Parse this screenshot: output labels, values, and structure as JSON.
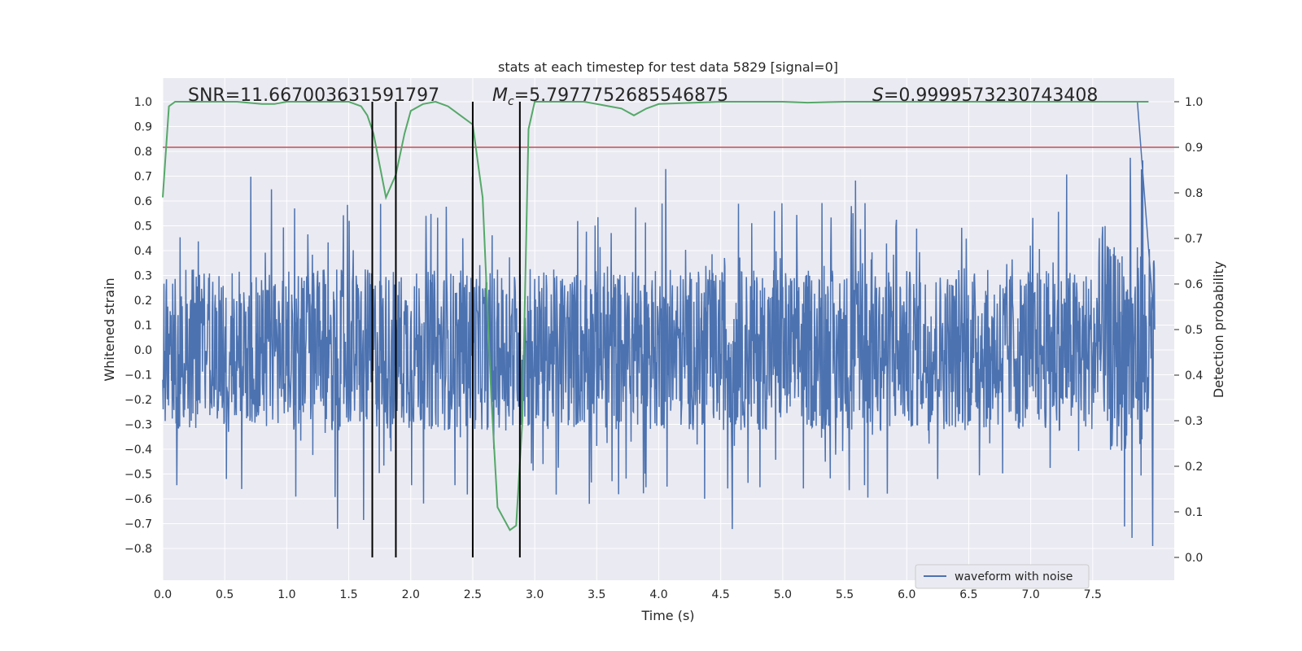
{
  "chart_data": {
    "type": "line",
    "title": "stats at each timestep for test data 5829 [signal=0]",
    "xlabel": "Time (s)",
    "ylabel": "Whitened strain",
    "y2label": "Detection probability",
    "xlim": [
      0.0,
      8.0
    ],
    "ylim": [
      -0.85,
      1.08
    ],
    "y2lim": [
      -0.05,
      1.04
    ],
    "xticks": [
      "0.0",
      "0.5",
      "1.0",
      "1.5",
      "2.0",
      "2.5",
      "3.0",
      "3.5",
      "4.0",
      "4.5",
      "5.0",
      "5.5",
      "6.0",
      "6.5",
      "7.0",
      "7.5"
    ],
    "yticks": [
      "1.0",
      "0.9",
      "0.8",
      "0.7",
      "0.6",
      "0.5",
      "0.4",
      "0.3",
      "0.2",
      "0.1",
      "0.0",
      "−0.1",
      "−0.2",
      "−0.3",
      "−0.4",
      "−0.5",
      "−0.6",
      "−0.7",
      "−0.8"
    ],
    "y2ticks": [
      "1.0",
      "0.9",
      "0.8",
      "0.7",
      "0.6",
      "0.5",
      "0.4",
      "0.3",
      "0.2",
      "0.1",
      "0.0"
    ],
    "annotations": {
      "snr": "SNR=11.667003631591797",
      "mc_symbol": "M",
      "mc_sub": "c",
      "mc_value": "=5.7977752685546875",
      "s_symbol": "S",
      "s_value": "=0.9999573230743408"
    },
    "threshold": 0.9,
    "vlines": [
      1.69,
      1.88,
      2.5,
      2.88
    ],
    "series": [
      {
        "name": "waveform with noise",
        "color": "#4c72b0",
        "envelope_note": "dense noise band approx -0.3 to 0.35 with spikes up to 1.0 near 7.85 s and down to -0.79"
      },
      {
        "name": "detection probability",
        "color": "#55a868",
        "x": [
          0.0,
          0.05,
          0.1,
          0.2,
          0.4,
          0.6,
          0.8,
          0.9,
          1.0,
          1.2,
          1.4,
          1.5,
          1.6,
          1.65,
          1.7,
          1.8,
          1.88,
          1.95,
          2.0,
          2.1,
          2.2,
          2.3,
          2.4,
          2.5,
          2.58,
          2.65,
          2.7,
          2.8,
          2.85,
          2.9,
          2.95,
          3.0,
          3.2,
          3.4,
          3.5,
          3.6,
          3.7,
          3.8,
          3.9,
          4.0,
          4.5,
          5.0,
          5.2,
          5.5,
          6.0,
          6.5,
          7.0,
          7.5,
          7.95
        ],
        "values": [
          0.79,
          0.99,
          1.0,
          1.0,
          1.0,
          1.0,
          0.995,
          0.995,
          1.0,
          1.0,
          1.0,
          1.0,
          0.99,
          0.97,
          0.93,
          0.79,
          0.84,
          0.93,
          0.98,
          0.995,
          1.0,
          0.99,
          0.97,
          0.95,
          0.79,
          0.35,
          0.11,
          0.06,
          0.07,
          0.3,
          0.94,
          1.0,
          1.0,
          1.0,
          0.995,
          0.99,
          0.985,
          0.97,
          0.985,
          0.995,
          1.0,
          1.0,
          0.998,
          1.0,
          1.0,
          1.0,
          1.0,
          1.0,
          1.0
        ]
      }
    ],
    "legend": {
      "label": "waveform with noise",
      "placement": "lower-right"
    },
    "colors": {
      "background": "#eaeaf2",
      "grid": "#ffffff",
      "waveform": "#4c72b0",
      "probability": "#55a868",
      "threshold": "#c44e52",
      "vline": "#000000"
    }
  }
}
